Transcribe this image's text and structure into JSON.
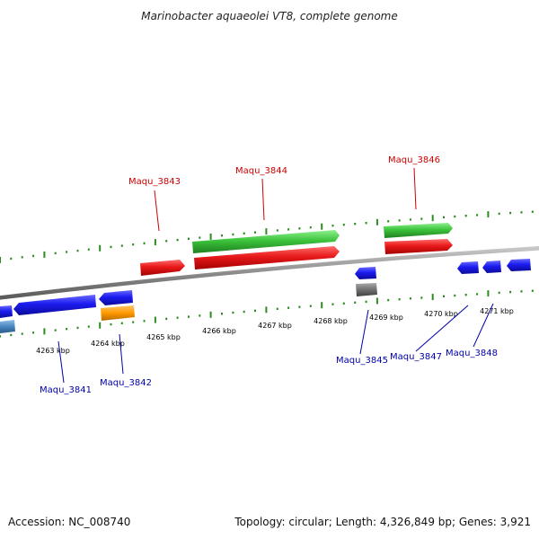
{
  "title": "Marinobacter aquaeolei VT8, complete genome",
  "footer": {
    "accession": "Accession: NC_008740",
    "topology": "Topology: circular; Length: 4,326,849 bp; Genes: 3,921"
  },
  "colors": {
    "backbone": "#8c8c8c",
    "tick": "#2e8b22",
    "forward_label": "#cc0000",
    "reverse_label": "#0000aa",
    "gene_red": "#e8191a",
    "gene_green": "#3cc43c",
    "gene_blue": "#1c1cf0",
    "gene_orange": "#ff9900",
    "gene_gray": "#707070",
    "gene_steel": "#4a86c0"
  },
  "ticks": [
    {
      "label": "4263 kbp"
    },
    {
      "label": "4264 kbp"
    },
    {
      "label": "4265 kbp"
    },
    {
      "label": "4266 kbp"
    },
    {
      "label": "4267 kbp"
    },
    {
      "label": "4268 kbp"
    },
    {
      "label": "4269 kbp"
    },
    {
      "label": "4270 kbp"
    },
    {
      "label": "4271 kbp"
    }
  ],
  "gene_labels": {
    "top": [
      "Maqu_3843",
      "Maqu_3844",
      "Maqu_3846"
    ],
    "bottom": [
      "Maqu_3841",
      "Maqu_3842",
      "Maqu_3845",
      "Maqu_3847",
      "Maqu_3848"
    ]
  }
}
